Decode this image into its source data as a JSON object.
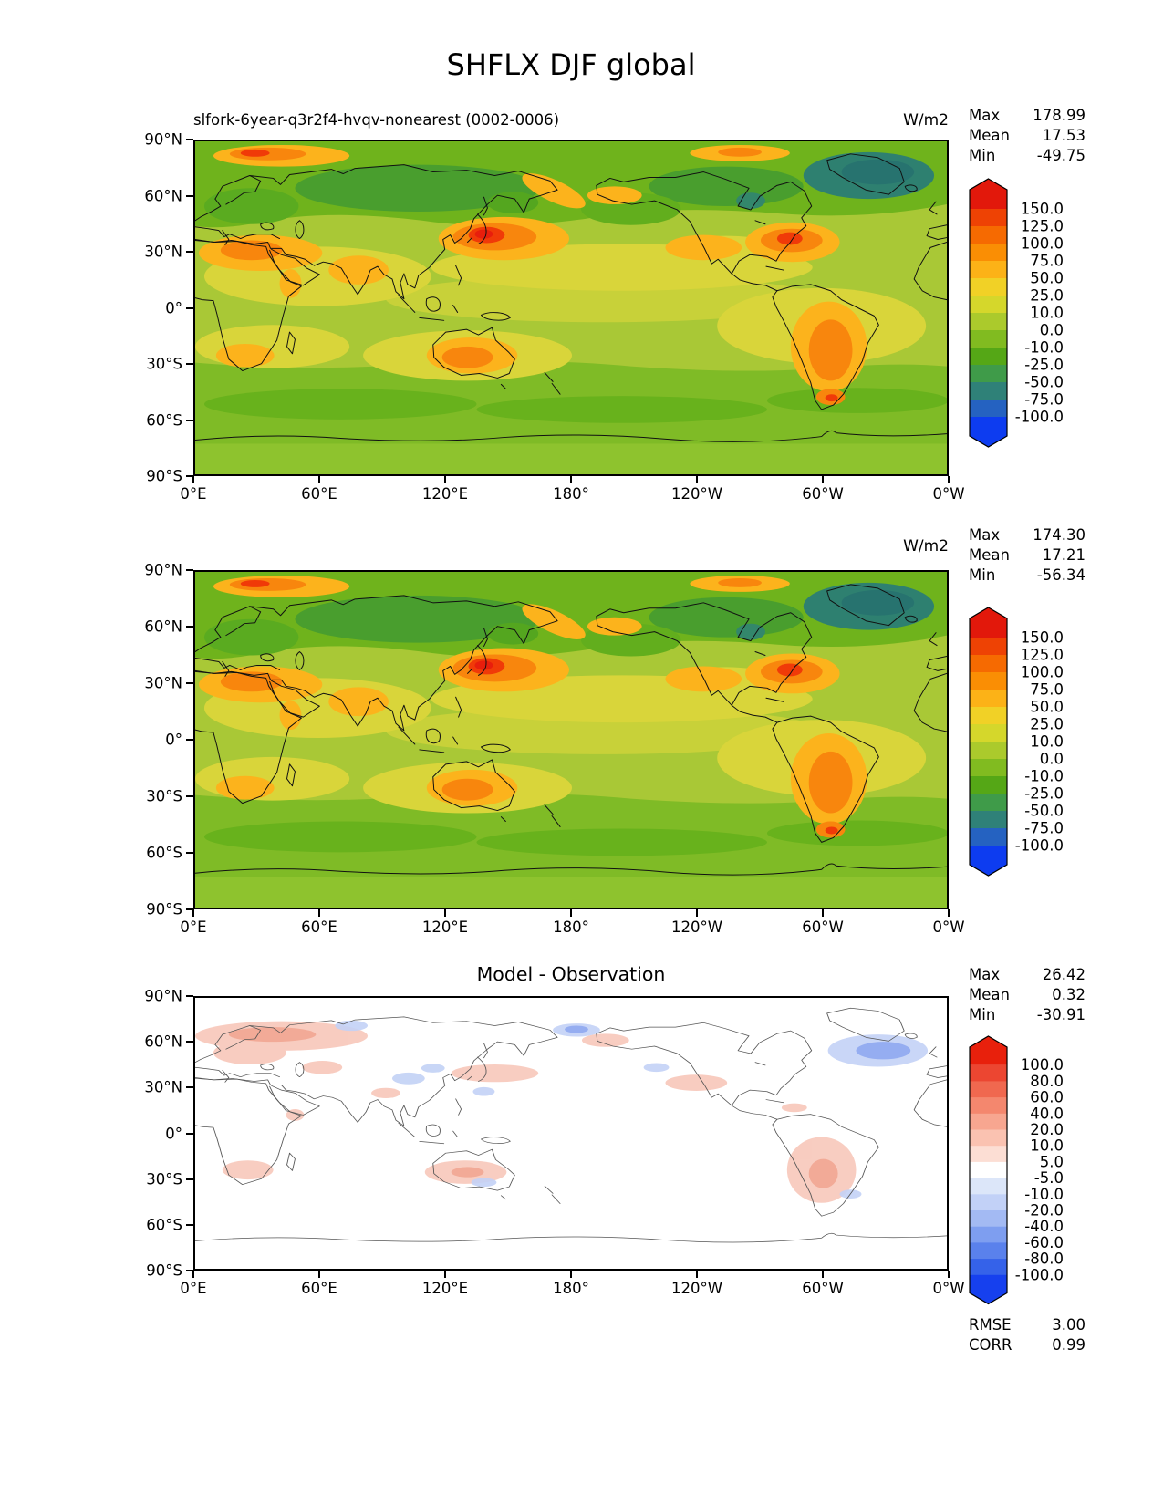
{
  "page_title": "SHFLX DJF global",
  "axis": {
    "x_ticks": [
      "0°E",
      "60°E",
      "120°E",
      "180°",
      "120°W",
      "60°W",
      "0°W"
    ],
    "y_ticks": [
      "90°N",
      "60°N",
      "30°N",
      "0°",
      "30°S",
      "60°S",
      "90°S"
    ]
  },
  "panels": [
    {
      "subtitle": "slfork-6year-q3r2f4-hvqv-nonearest (0002-0006)",
      "units": "W/m2",
      "stats": [
        [
          "Max",
          "178.99"
        ],
        [
          "Mean",
          "17.53"
        ],
        [
          "Min",
          "-49.75"
        ]
      ],
      "colorbar": {
        "levels": [
          "150.0",
          "125.0",
          "100.0",
          "75.0",
          "50.0",
          "25.0",
          "10.0",
          "0.0",
          "-10.0",
          "-25.0",
          "-50.0",
          "-75.0",
          "-100.0"
        ],
        "colors": [
          "#e2180b",
          "#ee4204",
          "#f66a01",
          "#fa8e04",
          "#fcb217",
          "#f1d126",
          "#d5d72b",
          "#abca2c",
          "#81bb20",
          "#55a716",
          "#3f9b49",
          "#2f8178",
          "#2562c1",
          "#0d3cf0"
        ]
      }
    },
    {
      "subtitle": "",
      "units": "W/m2",
      "stats": [
        [
          "Max",
          "174.30"
        ],
        [
          "Mean",
          "17.21"
        ],
        [
          "Min",
          "-56.34"
        ]
      ],
      "colorbar": {
        "levels": [
          "150.0",
          "125.0",
          "100.0",
          "75.0",
          "50.0",
          "25.0",
          "10.0",
          "0.0",
          "-10.0",
          "-25.0",
          "-50.0",
          "-75.0",
          "-100.0"
        ],
        "colors": [
          "#e2180b",
          "#ee4204",
          "#f66a01",
          "#fa8e04",
          "#fcb217",
          "#f1d126",
          "#d5d72b",
          "#abca2c",
          "#81bb20",
          "#55a716",
          "#3f9b49",
          "#2f8178",
          "#2562c1",
          "#0d3cf0"
        ]
      }
    },
    {
      "title": "Model - Observation",
      "stats": [
        [
          "Max",
          "26.42"
        ],
        [
          "Mean",
          "0.32"
        ],
        [
          "Min",
          "-30.91"
        ]
      ],
      "extra_stats": [
        [
          "RMSE",
          "3.00"
        ],
        [
          "CORR",
          "0.99"
        ]
      ],
      "colorbar": {
        "levels": [
          "100.0",
          "80.0",
          "60.0",
          "40.0",
          "20.0",
          "10.0",
          "5.0",
          "-5.0",
          "-10.0",
          "-20.0",
          "-40.0",
          "-60.0",
          "-80.0",
          "-100.0"
        ],
        "colors": [
          "#e8200c",
          "#ec4631",
          "#f0684f",
          "#f4876e",
          "#f7a690",
          "#fac2b1",
          "#fcded4",
          "#ffffff",
          "#dce6f9",
          "#c2d1f7",
          "#a3baf3",
          "#7e9ef0",
          "#5a81ec",
          "#3562e9",
          "#1640ee"
        ]
      }
    }
  ],
  "chart_data": [
    {
      "type": "heatmap",
      "subtype": "filled-contour-world-map",
      "variable": "SHFLX",
      "season": "DJF",
      "region": "global",
      "panel": "model",
      "title": "slfork-6year-q3r2f4-hvqv-nonearest (0002-0006)",
      "units": "W/m2",
      "stats": {
        "max": 178.99,
        "mean": 17.53,
        "min": -49.75
      },
      "contour_levels": [
        -100,
        -75,
        -50,
        -25,
        -10,
        0,
        10,
        25,
        50,
        75,
        100,
        125,
        150
      ],
      "colorbar_extend": "both",
      "lon_range": [
        0,
        360
      ],
      "lat_range": [
        -90,
        90
      ],
      "x_ticks": [
        "0°E",
        "60°E",
        "120°E",
        "180°",
        "120°W",
        "60°W",
        "0°W"
      ],
      "y_ticks": [
        "90°N",
        "60°N",
        "30°N",
        "0°",
        "30°S",
        "60°S",
        "90°S"
      ]
    },
    {
      "type": "heatmap",
      "subtype": "filled-contour-world-map",
      "variable": "SHFLX",
      "season": "DJF",
      "region": "global",
      "panel": "observation",
      "units": "W/m2",
      "stats": {
        "max": 174.3,
        "mean": 17.21,
        "min": -56.34
      },
      "contour_levels": [
        -100,
        -75,
        -50,
        -25,
        -10,
        0,
        10,
        25,
        50,
        75,
        100,
        125,
        150
      ],
      "colorbar_extend": "both",
      "lon_range": [
        0,
        360
      ],
      "lat_range": [
        -90,
        90
      ]
    },
    {
      "type": "heatmap",
      "subtype": "filled-contour-world-map",
      "variable": "SHFLX",
      "season": "DJF",
      "region": "global",
      "panel": "difference",
      "title": "Model - Observation",
      "stats": {
        "max": 26.42,
        "mean": 0.32,
        "min": -30.91,
        "rmse": 3.0,
        "corr": 0.99
      },
      "contour_levels": [
        -100,
        -80,
        -60,
        -40,
        -20,
        -10,
        -5,
        5,
        10,
        20,
        40,
        60,
        80,
        100
      ],
      "colorbar_extend": "both",
      "lon_range": [
        0,
        360
      ],
      "lat_range": [
        -90,
        90
      ]
    }
  ]
}
